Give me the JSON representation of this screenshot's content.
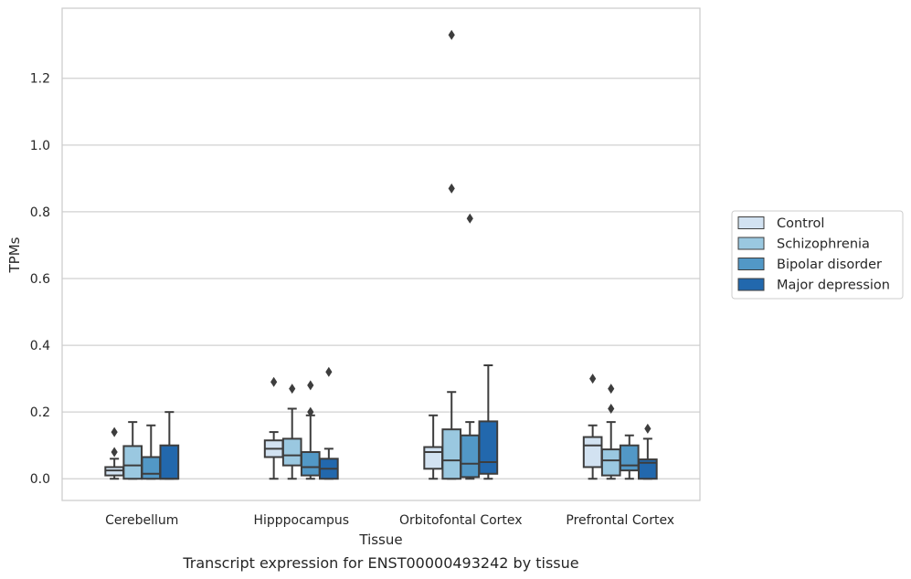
{
  "chart_data": {
    "type": "box",
    "caption": "Transcript expression for ENST00000493242 by tissue",
    "xlabel": "Tissue",
    "ylabel": "TPMs",
    "ylim": [
      -0.065,
      1.41
    ],
    "yticks": [
      0.0,
      0.2,
      0.4,
      0.6,
      0.8,
      1.0,
      1.2
    ],
    "grid": "horizontal",
    "legend_position": "right",
    "categories": [
      "Cerebellum",
      "Hipppocampus",
      "Orbitofontal Cortex",
      "Prefrontal Cortex"
    ],
    "series": [
      {
        "name": "Control",
        "color": "#d2e2f1",
        "boxes": [
          {
            "whislo": 0.0,
            "q1": 0.01,
            "med": 0.025,
            "q3": 0.035,
            "whishi": 0.06,
            "fliers": [
              0.08,
              0.14
            ]
          },
          {
            "whislo": 0.0,
            "q1": 0.065,
            "med": 0.09,
            "q3": 0.115,
            "whishi": 0.14,
            "fliers": [
              0.29
            ]
          },
          {
            "whislo": 0.0,
            "q1": 0.03,
            "med": 0.08,
            "q3": 0.095,
            "whishi": 0.19,
            "fliers": []
          },
          {
            "whislo": 0.0,
            "q1": 0.035,
            "med": 0.1,
            "q3": 0.125,
            "whishi": 0.16,
            "fliers": [
              0.3
            ]
          }
        ]
      },
      {
        "name": "Schizophrenia",
        "color": "#9ac8e0",
        "boxes": [
          {
            "whislo": 0.0,
            "q1": 0.0,
            "med": 0.04,
            "q3": 0.098,
            "whishi": 0.17,
            "fliers": []
          },
          {
            "whislo": 0.0,
            "q1": 0.04,
            "med": 0.07,
            "q3": 0.12,
            "whishi": 0.21,
            "fliers": [
              0.27
            ]
          },
          {
            "whislo": 0.0,
            "q1": 0.0,
            "med": 0.055,
            "q3": 0.148,
            "whishi": 0.26,
            "fliers": [
              0.87,
              1.33
            ]
          },
          {
            "whislo": 0.0,
            "q1": 0.01,
            "med": 0.055,
            "q3": 0.088,
            "whishi": 0.17,
            "fliers": [
              0.21,
              0.27
            ]
          }
        ]
      },
      {
        "name": "Bipolar disorder",
        "color": "#5298c6",
        "boxes": [
          {
            "whislo": 0.0,
            "q1": 0.0,
            "med": 0.015,
            "q3": 0.065,
            "whishi": 0.16,
            "fliers": []
          },
          {
            "whislo": 0.0,
            "q1": 0.01,
            "med": 0.035,
            "q3": 0.08,
            "whishi": 0.19,
            "fliers": [
              0.2,
              0.28
            ]
          },
          {
            "whislo": 0.0,
            "q1": 0.005,
            "med": 0.045,
            "q3": 0.13,
            "whishi": 0.17,
            "fliers": [
              0.78
            ]
          },
          {
            "whislo": 0.0,
            "q1": 0.025,
            "med": 0.04,
            "q3": 0.1,
            "whishi": 0.13,
            "fliers": []
          }
        ]
      },
      {
        "name": "Major depression",
        "color": "#2268ad",
        "boxes": [
          {
            "whislo": 0.0,
            "q1": 0.0,
            "med": 0.0,
            "q3": 0.1,
            "whishi": 0.2,
            "fliers": []
          },
          {
            "whislo": 0.0,
            "q1": 0.0,
            "med": 0.03,
            "q3": 0.06,
            "whishi": 0.09,
            "fliers": [
              0.32
            ]
          },
          {
            "whislo": 0.0,
            "q1": 0.015,
            "med": 0.05,
            "q3": 0.172,
            "whishi": 0.34,
            "fliers": []
          },
          {
            "whislo": 0.0,
            "q1": 0.0,
            "med": 0.048,
            "q3": 0.058,
            "whishi": 0.12,
            "fliers": [
              0.15
            ]
          }
        ]
      }
    ]
  }
}
